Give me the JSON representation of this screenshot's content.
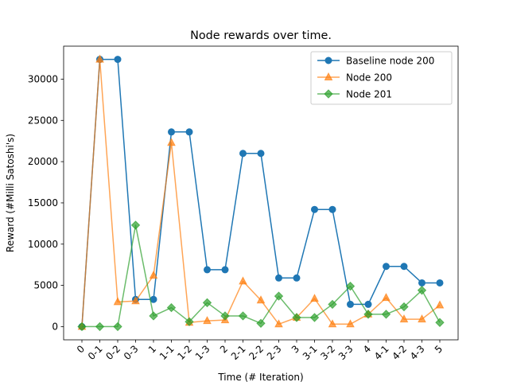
{
  "chart_data": {
    "type": "line",
    "title": "Node rewards over time.",
    "xlabel": "Time (# Iteration)",
    "ylabel": "Reward (#Milli Satoshi's)",
    "categories": [
      "0",
      "0-1",
      "0-2",
      "0-3",
      "1",
      "1-1",
      "1-2",
      "1-3",
      "2",
      "2-1",
      "2-2",
      "2-3",
      "3",
      "3-1",
      "3-2",
      "3-3",
      "4",
      "4-1",
      "4-2",
      "4-3",
      "5"
    ],
    "ylim": [
      -1600,
      34000
    ],
    "yticks": [
      0,
      5000,
      10000,
      15000,
      20000,
      25000,
      30000
    ],
    "ytick_labels": [
      "0",
      "5000",
      "10000",
      "15000",
      "20000",
      "25000",
      "30000"
    ],
    "legend_position": "top-right",
    "grid": false,
    "series": [
      {
        "name": "Baseline node 200",
        "color": "#1f77b4",
        "marker": "circle",
        "alpha": 1.0,
        "values": [
          0,
          32400,
          32400,
          3300,
          3300,
          23600,
          23600,
          6900,
          6900,
          21000,
          21000,
          5900,
          5900,
          14200,
          14200,
          2700,
          2700,
          7300,
          7300,
          5300,
          5300
        ]
      },
      {
        "name": "Node 200",
        "color": "#ff7f0e",
        "marker": "triangle",
        "alpha": 0.7,
        "values": [
          0,
          32400,
          3000,
          3100,
          6200,
          22300,
          500,
          700,
          800,
          5500,
          3200,
          300,
          1100,
          3400,
          300,
          300,
          1500,
          3500,
          900,
          900,
          2600
        ]
      },
      {
        "name": "Node 201",
        "color": "#2ca02c",
        "marker": "diamond",
        "alpha": 0.7,
        "values": [
          0,
          0,
          0,
          12300,
          1300,
          2300,
          600,
          2900,
          1300,
          1300,
          400,
          3700,
          1100,
          1100,
          2700,
          4900,
          1500,
          1500,
          2400,
          4400,
          500
        ]
      }
    ]
  }
}
